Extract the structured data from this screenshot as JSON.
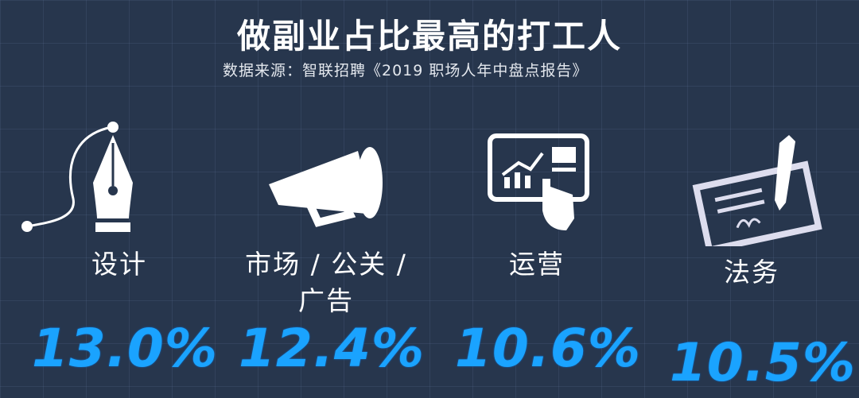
{
  "title": "做副业占比最高的打工人",
  "subtitle": "数据来源：智联招聘《2019 职场人年中盘点报告》",
  "accent_color": "#1aa3ff",
  "items": [
    {
      "label": "设计",
      "value": "13.0%",
      "icon": "pen-nib-icon"
    },
    {
      "label": "市场 / 公关 /",
      "label2": "广告",
      "value": "12.4%",
      "icon": "megaphone-icon"
    },
    {
      "label": "运营",
      "value": "10.6%",
      "icon": "tablet-chart-icon"
    },
    {
      "label": "法务",
      "value": "10.5%",
      "icon": "contract-pen-icon"
    }
  ]
}
